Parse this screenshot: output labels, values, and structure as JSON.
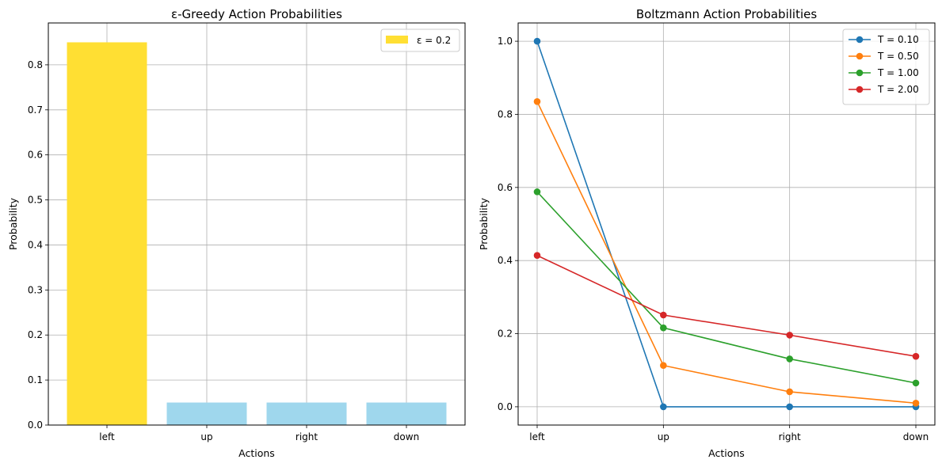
{
  "chart_data": [
    {
      "type": "bar",
      "title": "ε-Greedy Action Probabilities",
      "xlabel": "Actions",
      "ylabel": "Probability",
      "categories": [
        "left",
        "up",
        "right",
        "down"
      ],
      "values": [
        0.85,
        0.05,
        0.05,
        0.05
      ],
      "bar_colors": [
        "#ffdf33",
        "#9fd7ed",
        "#9fd7ed",
        "#9fd7ed"
      ],
      "ylim": [
        0,
        0.893
      ],
      "yticks": [
        "0.0",
        "0.1",
        "0.2",
        "0.3",
        "0.4",
        "0.5",
        "0.6",
        "0.7",
        "0.8"
      ],
      "grid": true,
      "legend": {
        "placement": "top-right",
        "entries": [
          {
            "label": "ε = 0.2",
            "color": "#ffdf33"
          }
        ]
      }
    },
    {
      "type": "line",
      "title": "Boltzmann Action Probabilities",
      "xlabel": "Actions",
      "ylabel": "Probability",
      "categories": [
        "left",
        "up",
        "right",
        "down"
      ],
      "series": [
        {
          "name": "T = 0.10",
          "color": "#1f77b4",
          "values": [
            1.0,
            0.0,
            0.0,
            0.0
          ]
        },
        {
          "name": "T = 0.50",
          "color": "#ff7f0e",
          "values": [
            0.835,
            0.113,
            0.041,
            0.01
          ]
        },
        {
          "name": "T = 1.00",
          "color": "#2ca02c",
          "values": [
            0.588,
            0.216,
            0.131,
            0.065
          ]
        },
        {
          "name": "T = 2.00",
          "color": "#d62728",
          "values": [
            0.414,
            0.251,
            0.196,
            0.138
          ]
        }
      ],
      "ylim": [
        -0.05,
        1.05
      ],
      "yticks": [
        "0.0",
        "0.2",
        "0.4",
        "0.6",
        "0.8",
        "1.0"
      ],
      "grid": true,
      "legend": {
        "placement": "top-right"
      }
    }
  ]
}
